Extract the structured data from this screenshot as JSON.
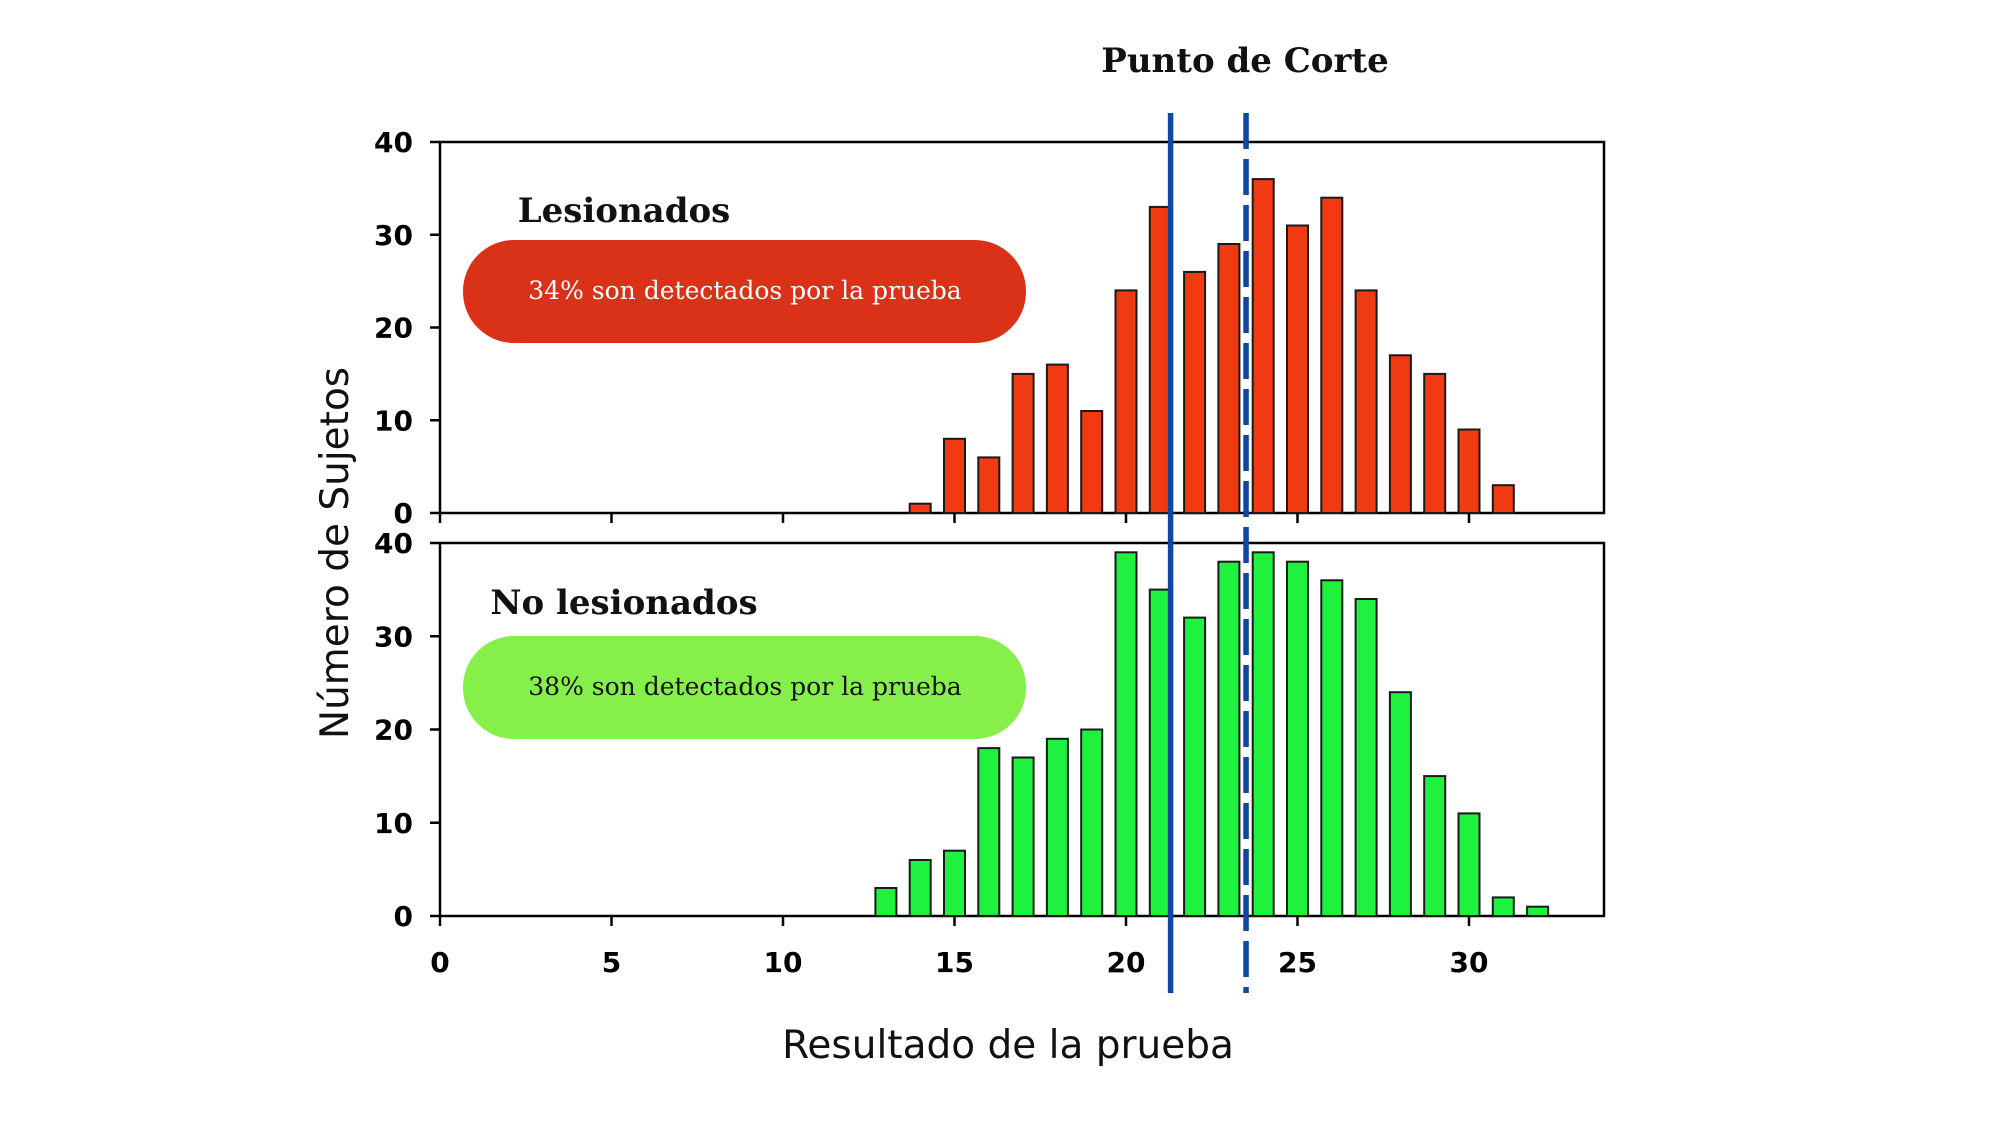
{
  "chart_data": {
    "type": "bar",
    "title": "Punto de Corte",
    "xlabel": "Resultado de la prueba",
    "ylabel": "Número de Sujetos",
    "xlim": [
      0,
      34
    ],
    "x_ticks": [
      "0",
      "5",
      "10",
      "15",
      "20",
      "25",
      "30"
    ],
    "y_ticks": [
      "0",
      "10",
      "20",
      "30",
      "40"
    ],
    "grid": false,
    "cutoff_lines": [
      {
        "x": 21.3,
        "style": "solid",
        "color": "#0d47a1"
      },
      {
        "x": 23.5,
        "style": "dashed",
        "color": "#0d47a1"
      }
    ],
    "panels": [
      {
        "label": "Lesionados",
        "annotation": "34% son detectados por la prueba",
        "annotation_color": "#d93218",
        "annotation_text_color": "#ffffff",
        "bar_color": "#f03a12",
        "ylim": [
          0,
          40
        ],
        "x": [
          14,
          15,
          16,
          17,
          18,
          19,
          20,
          21,
          22,
          23,
          24,
          25,
          26,
          27,
          28,
          29,
          30,
          31
        ],
        "values": [
          1,
          8,
          6,
          15,
          16,
          11,
          24,
          33,
          26,
          29,
          36,
          31,
          34,
          24,
          17,
          15,
          9,
          3
        ]
      },
      {
        "label": "No lesionados",
        "annotation": "38% son detectados por la prueba",
        "annotation_color": "#86ef4a",
        "annotation_text_color": "#111111",
        "bar_color": "#1ef23f",
        "ylim": [
          0,
          40
        ],
        "x": [
          13,
          14,
          15,
          16,
          17,
          18,
          19,
          20,
          21,
          22,
          23,
          24,
          25,
          26,
          27,
          28,
          29,
          30,
          31,
          32
        ],
        "values": [
          3,
          6,
          7,
          18,
          17,
          19,
          20,
          39,
          35,
          32,
          38,
          39,
          38,
          36,
          34,
          24,
          15,
          11,
          2,
          1
        ]
      }
    ]
  }
}
